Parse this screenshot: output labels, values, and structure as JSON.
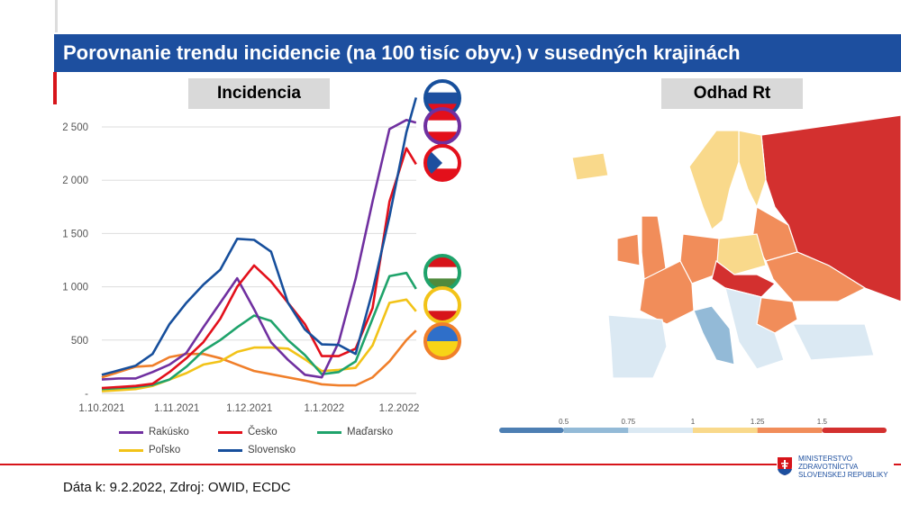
{
  "header": {
    "title": "Porovnanie trendu incidencie (na 100 tisíc obyv.) v susedných krajinách"
  },
  "left_tag": "Incidencia",
  "right_tag": "Odhad Rt",
  "footer": {
    "source": "Dáta k: 9.2.2022, Zdroj: OWID, ECDC",
    "logo_lines": [
      "MINISTERSTVO",
      "ZDRAVOTNÍCTVA",
      "SLOVENSKEJ REPUBLIKY"
    ]
  },
  "chart_data": [
    {
      "type": "line",
      "title": "Incidencia",
      "x": [
        "2021-10-01",
        "2021-10-08",
        "2021-10-15",
        "2021-10-22",
        "2021-10-29",
        "2021-11-05",
        "2021-11-12",
        "2021-11-19",
        "2021-11-26",
        "2021-12-03",
        "2021-12-10",
        "2021-12-17",
        "2021-12-24",
        "2021-12-31",
        "2022-01-07",
        "2022-01-14",
        "2022-01-21",
        "2022-01-28",
        "2022-02-04",
        "2022-02-08"
      ],
      "xticks": [
        "1.10.2021",
        "1.11.2021",
        "1.12.2021",
        "1.1.2022",
        "1.2.2022"
      ],
      "xtick_dates": [
        "2021-10-01",
        "2021-11-01",
        "2021-12-01",
        "2022-01-01",
        "2022-02-01"
      ],
      "yticks": [
        "2 500",
        "2 000",
        "1 500",
        "1 000",
        "500",
        "-"
      ],
      "ytick_values": [
        2500,
        2000,
        1500,
        1000,
        500,
        0
      ],
      "ylim": [
        0,
        2800
      ],
      "grid": true,
      "legend_position": "bottom",
      "series": [
        {
          "name": "Rakúsko",
          "color": "#7030a0",
          "flag": "austria",
          "values": [
            130,
            140,
            140,
            200,
            270,
            380,
            620,
            850,
            1080,
            790,
            480,
            315,
            175,
            150,
            480,
            1075,
            1800,
            2480,
            2565,
            2540
          ]
        },
        {
          "name": "Česko",
          "color": "#e3101b",
          "flag": "czechia",
          "values": [
            50,
            60,
            70,
            90,
            200,
            330,
            480,
            700,
            1000,
            1200,
            1050,
            850,
            650,
            350,
            350,
            420,
            800,
            1800,
            2300,
            2150
          ]
        },
        {
          "name": "Maďarsko",
          "color": "#1fa36b",
          "flag": "hungary",
          "values": [
            40,
            50,
            60,
            80,
            130,
            250,
            400,
            500,
            620,
            730,
            680,
            500,
            360,
            180,
            200,
            300,
            700,
            1100,
            1130,
            980
          ]
        },
        {
          "name": "Poľsko",
          "color": "#f2c318",
          "flag": "poland",
          "values": [
            20,
            30,
            40,
            70,
            130,
            190,
            270,
            300,
            390,
            430,
            430,
            420,
            320,
            210,
            220,
            240,
            450,
            850,
            880,
            770
          ]
        },
        {
          "name": "Slovensko",
          "color": "#174f9c",
          "flag": "slovakia",
          "values": [
            174,
            216,
            260,
            370,
            650,
            850,
            1020,
            1160,
            1450,
            1440,
            1330,
            850,
            600,
            460,
            455,
            370,
            960,
            1660,
            2450,
            2775
          ]
        },
        {
          "name": "",
          "color": "#f07f2a",
          "flag": "ukraine",
          "values": [
            150,
            200,
            250,
            260,
            340,
            370,
            370,
            330,
            270,
            210,
            180,
            150,
            120,
            85,
            75,
            75,
            150,
            300,
            500,
            590
          ]
        }
      ]
    },
    {
      "type": "heatmap",
      "title": "Odhad Rt",
      "scale_ticks": [
        "0.5",
        "0.75",
        "1",
        "1.25",
        "1.5"
      ],
      "scale_colors": [
        "#4d7fb3",
        "#93bad7",
        "#dbe9f3",
        "#f9d98b",
        "#f18d5a",
        "#d3302f"
      ]
    }
  ]
}
